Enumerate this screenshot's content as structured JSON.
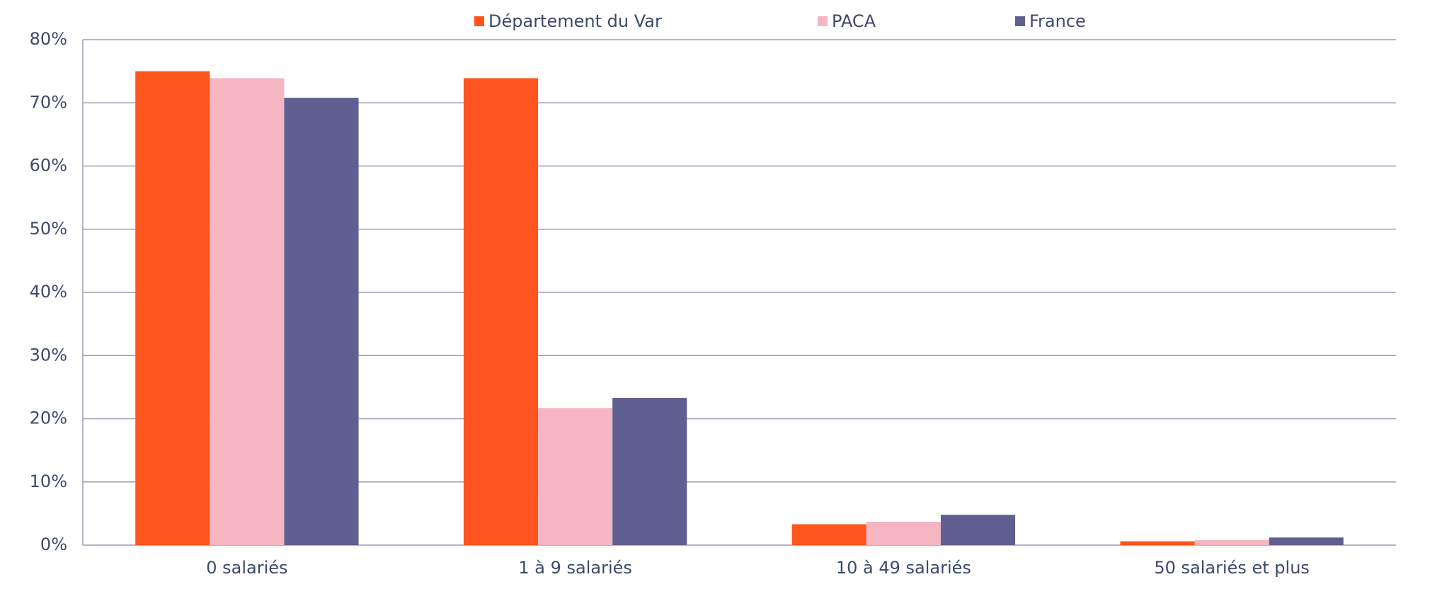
{
  "chart_data": {
    "type": "bar",
    "categories": [
      "0 salariés",
      "1 à 9 salariés",
      "10 à 49 salariés",
      "50 salariés et plus"
    ],
    "series": [
      {
        "name": "Département du Var",
        "color": "#ff541d",
        "values": [
          75,
          73.9,
          3.3,
          0.6
        ]
      },
      {
        "name": "PACA",
        "color": "#f5b5c1",
        "values": [
          73.9,
          21.7,
          3.7,
          0.8
        ]
      },
      {
        "name": "France",
        "color": "#5f5f91",
        "values": [
          70.8,
          23.3,
          4.8,
          1.2
        ]
      }
    ],
    "ylim": [
      0,
      80
    ],
    "yticks": [
      {
        "value": 0,
        "label": "0%"
      },
      {
        "value": 10,
        "label": "10%"
      },
      {
        "value": 20,
        "label": "20%"
      },
      {
        "value": 30,
        "label": "30%"
      },
      {
        "value": 40,
        "label": "40%"
      },
      {
        "value": 50,
        "label": "50%"
      },
      {
        "value": 60,
        "label": "60%"
      },
      {
        "value": 70,
        "label": "70%"
      },
      {
        "value": 80,
        "label": "80%"
      }
    ],
    "grid": true,
    "legend": "top"
  }
}
